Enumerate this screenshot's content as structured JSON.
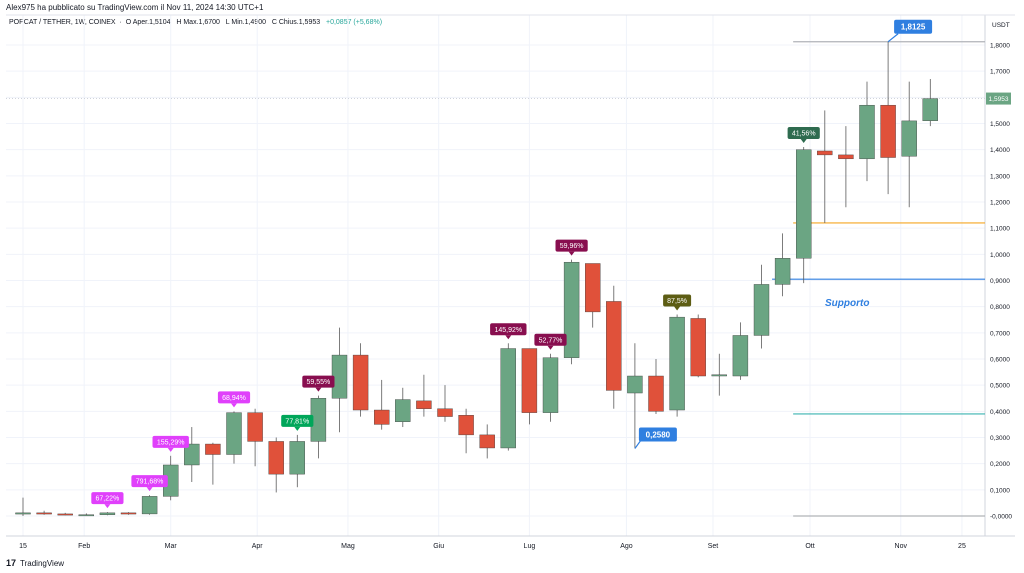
{
  "header": {
    "publisher": "Alex975 ha pubblicato su TradingView.com il Nov 11, 2024 14:30 UTC+1",
    "legend_symbol": "POPCAT / TETHER, 1W, COINEX",
    "legend_open_label": "O",
    "legend_open": "Aper.1,5104",
    "legend_high_label": "H",
    "legend_high": "Max.1,6700",
    "legend_low_label": "L",
    "legend_low": "Min.1,4900",
    "legend_close_label": "C",
    "legend_close": "Chius.1,5953",
    "legend_change": "+0,0857 (+5,68%)"
  },
  "footer": {
    "brand": "TradingView"
  },
  "colors": {
    "up": "#6ba583",
    "down": "#e0513a",
    "orange_line": "#f5a623",
    "blue_line": "#2f7fe0",
    "teal_line": "#3bb3b0",
    "grey_line": "#b0b3b8"
  },
  "chart_data": {
    "type": "candlestick",
    "currency_label": "USDT",
    "y_ticks": [
      "-0,0000",
      "0,1000",
      "0,2000",
      "0,3000",
      "0,4000",
      "0,5000",
      "0,6000",
      "0,7000",
      "0,8000",
      "0,9000",
      "1,0000",
      "1,1000",
      "1,2000",
      "1,3000",
      "1,4000",
      "1,5000",
      "1,6000",
      "1,7000",
      "1,8000"
    ],
    "ylim": [
      -0.05,
      1.9
    ],
    "x_tick_labels": [
      {
        "label": "15",
        "index": 0
      },
      {
        "label": "Feb",
        "index": 2.9
      },
      {
        "label": "Mar",
        "index": 7
      },
      {
        "label": "Apr",
        "index": 11.1
      },
      {
        "label": "Mag",
        "index": 15.4
      },
      {
        "label": "Giu",
        "index": 19.7
      },
      {
        "label": "Lug",
        "index": 24
      },
      {
        "label": "Ago",
        "index": 28.6
      },
      {
        "label": "Set",
        "index": 32.7
      },
      {
        "label": "Ott",
        "index": 37.3
      },
      {
        "label": "Nov",
        "index": 41.6
      },
      {
        "label": "25",
        "index": 44.5
      }
    ],
    "candles": [
      {
        "o": 0.01,
        "h": 0.07,
        "l": 0.0,
        "c": 0.012
      },
      {
        "o": 0.012,
        "h": 0.02,
        "l": 0.005,
        "c": 0.008
      },
      {
        "o": 0.008,
        "h": 0.012,
        "l": 0.003,
        "c": 0.004
      },
      {
        "o": 0.004,
        "h": 0.01,
        "l": 0.002,
        "c": 0.005
      },
      {
        "o": 0.005,
        "h": 0.015,
        "l": 0.003,
        "c": 0.012
      },
      {
        "o": 0.012,
        "h": 0.015,
        "l": 0.005,
        "c": 0.008
      },
      {
        "o": 0.008,
        "h": 0.08,
        "l": 0.005,
        "c": 0.075
      },
      {
        "o": 0.075,
        "h": 0.23,
        "l": 0.06,
        "c": 0.195
      },
      {
        "o": 0.195,
        "h": 0.34,
        "l": 0.13,
        "c": 0.275
      },
      {
        "o": 0.275,
        "h": 0.28,
        "l": 0.12,
        "c": 0.235
      },
      {
        "o": 0.235,
        "h": 0.4,
        "l": 0.2,
        "c": 0.395
      },
      {
        "o": 0.395,
        "h": 0.41,
        "l": 0.19,
        "c": 0.285
      },
      {
        "o": 0.285,
        "h": 0.3,
        "l": 0.09,
        "c": 0.16
      },
      {
        "o": 0.16,
        "h": 0.31,
        "l": 0.11,
        "c": 0.285
      },
      {
        "o": 0.285,
        "h": 0.46,
        "l": 0.22,
        "c": 0.45
      },
      {
        "o": 0.45,
        "h": 0.72,
        "l": 0.32,
        "c": 0.615
      },
      {
        "o": 0.615,
        "h": 0.66,
        "l": 0.38,
        "c": 0.405
      },
      {
        "o": 0.405,
        "h": 0.52,
        "l": 0.33,
        "c": 0.35
      },
      {
        "o": 0.36,
        "h": 0.49,
        "l": 0.34,
        "c": 0.445
      },
      {
        "o": 0.44,
        "h": 0.54,
        "l": 0.38,
        "c": 0.41
      },
      {
        "o": 0.41,
        "h": 0.5,
        "l": 0.36,
        "c": 0.38
      },
      {
        "o": 0.385,
        "h": 0.41,
        "l": 0.24,
        "c": 0.31
      },
      {
        "o": 0.31,
        "h": 0.35,
        "l": 0.22,
        "c": 0.26
      },
      {
        "o": 0.26,
        "h": 0.66,
        "l": 0.25,
        "c": 0.64
      },
      {
        "o": 0.64,
        "h": 0.64,
        "l": 0.35,
        "c": 0.395
      },
      {
        "o": 0.395,
        "h": 0.62,
        "l": 0.36,
        "c": 0.605
      },
      {
        "o": 0.605,
        "h": 0.98,
        "l": 0.58,
        "c": 0.97
      },
      {
        "o": 0.965,
        "h": 0.965,
        "l": 0.72,
        "c": 0.78
      },
      {
        "o": 0.82,
        "h": 0.88,
        "l": 0.41,
        "c": 0.48
      },
      {
        "o": 0.47,
        "h": 0.66,
        "l": 0.258,
        "c": 0.535
      },
      {
        "o": 0.535,
        "h": 0.6,
        "l": 0.39,
        "c": 0.4
      },
      {
        "o": 0.405,
        "h": 0.77,
        "l": 0.38,
        "c": 0.76
      },
      {
        "o": 0.755,
        "h": 0.77,
        "l": 0.53,
        "c": 0.535
      },
      {
        "o": 0.535,
        "h": 0.62,
        "l": 0.46,
        "c": 0.54
      },
      {
        "o": 0.535,
        "h": 0.74,
        "l": 0.52,
        "c": 0.69
      },
      {
        "o": 0.69,
        "h": 0.96,
        "l": 0.64,
        "c": 0.885
      },
      {
        "o": 0.885,
        "h": 1.08,
        "l": 0.84,
        "c": 0.985
      },
      {
        "o": 0.985,
        "h": 1.41,
        "l": 0.89,
        "c": 1.4
      },
      {
        "o": 1.395,
        "h": 1.55,
        "l": 1.12,
        "c": 1.38
      },
      {
        "o": 1.38,
        "h": 1.49,
        "l": 1.18,
        "c": 1.365
      },
      {
        "o": 1.365,
        "h": 1.66,
        "l": 1.28,
        "c": 1.57
      },
      {
        "o": 1.57,
        "h": 1.8125,
        "l": 1.23,
        "c": 1.37
      },
      {
        "o": 1.375,
        "h": 1.66,
        "l": 1.18,
        "c": 1.51
      },
      {
        "o": 1.5104,
        "h": 1.67,
        "l": 1.49,
        "c": 1.5953
      }
    ],
    "badges": [
      {
        "text": "67,22%",
        "index": 4,
        "color": "#e040fb"
      },
      {
        "text": "791,68%",
        "index": 6,
        "color": "#e040fb"
      },
      {
        "text": "155,29%",
        "index": 7,
        "color": "#e040fb"
      },
      {
        "text": "68,94%",
        "index": 10,
        "color": "#e040fb"
      },
      {
        "text": "77,81%",
        "index": 13,
        "color": "#00a65a"
      },
      {
        "text": "59,55%",
        "index": 14,
        "color": "#880e4f"
      },
      {
        "text": "145,92%",
        "index": 23,
        "color": "#880e4f"
      },
      {
        "text": "52,77%",
        "index": 25,
        "color": "#880e4f"
      },
      {
        "text": "59,96%",
        "index": 26,
        "color": "#880e4f"
      },
      {
        "text": "87,5%",
        "index": 31,
        "color": "#5d5d14"
      },
      {
        "text": "41,56%",
        "index": 37,
        "color": "#2e6b4f"
      }
    ],
    "callouts": [
      {
        "text": "1,8125",
        "index": 41,
        "value": 1.8125
      },
      {
        "text": "0,2580",
        "index": 29,
        "value": 0.258
      }
    ],
    "horizontal_lines": [
      {
        "value": 1.8125,
        "start_index": 36.5,
        "color": "#b0b3b8"
      },
      {
        "value": 1.12,
        "start_index": 36.5,
        "color": "#f5a623"
      },
      {
        "value": 0.905,
        "start_index": 35.5,
        "color": "#2f7fe0"
      },
      {
        "value": 0.39,
        "start_index": 36.5,
        "color": "#3bb3b0"
      },
      {
        "value": 0.0,
        "start_index": 36.5,
        "color": "#b0b3b8"
      }
    ],
    "support_label": "Supporto",
    "last_price": {
      "text": "1,5953",
      "value": 1.5953
    }
  }
}
